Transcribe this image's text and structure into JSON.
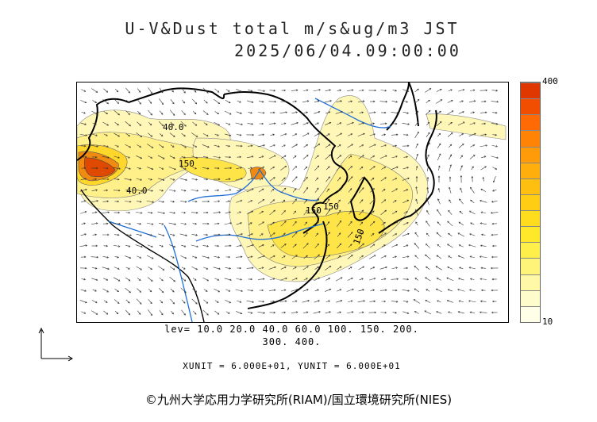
{
  "title": {
    "line1": "U-V&Dust total m/s&ug/m3 JST",
    "line2": "2025/06/04.09:00:00"
  },
  "colorbar": {
    "max_label": "400",
    "min_label": "10",
    "colors": [
      "#ffffe8",
      "#fffccc",
      "#fff8a6",
      "#fff47a",
      "#ffef4a",
      "#ffe82a",
      "#ffdc1e",
      "#ffce14",
      "#ffbf10",
      "#ffae0c",
      "#ff9a08",
      "#ff8406",
      "#ff6a04",
      "#f24e02",
      "#e03600"
    ]
  },
  "contour_labels": [
    "40.0",
    "150",
    "40.0",
    "150",
    "150",
    "150"
  ],
  "levels": {
    "line1": "lev= 10.0 20.0 40.0 60.0 100. 150. 200.",
    "line2": "300. 400."
  },
  "units": "XUNIT = 6.000E+01, YUNIT = 6.000E+01",
  "credit": "©九州大学応用力学研究所(RIAM)/国立環境研究所(NIES)",
  "colors": {
    "land_border": "#000000",
    "river": "#1f6fd6",
    "dust_low": "#fff6a8",
    "dust_mid": "#ffdd33",
    "dust_high": "#f07a00",
    "dust_peak": "#e03a00"
  }
}
